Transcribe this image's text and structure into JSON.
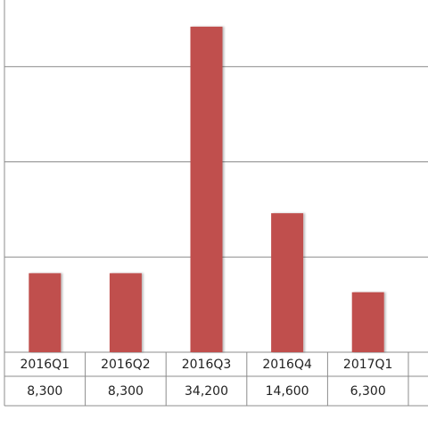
{
  "chart_data": {
    "type": "bar",
    "categories": [
      "2016Q1",
      "2016Q2",
      "2016Q3",
      "2016Q4",
      "2017Q1"
    ],
    "values": [
      8300,
      8300,
      34200,
      14600,
      6300
    ],
    "value_labels": [
      "8,300",
      "8,300",
      "34,200",
      "14,600",
      "6,300"
    ],
    "color": "#c0504d",
    "ylim": [
      0,
      37000
    ],
    "yticks": [
      0,
      10000,
      20000,
      30000
    ],
    "grid": true
  }
}
